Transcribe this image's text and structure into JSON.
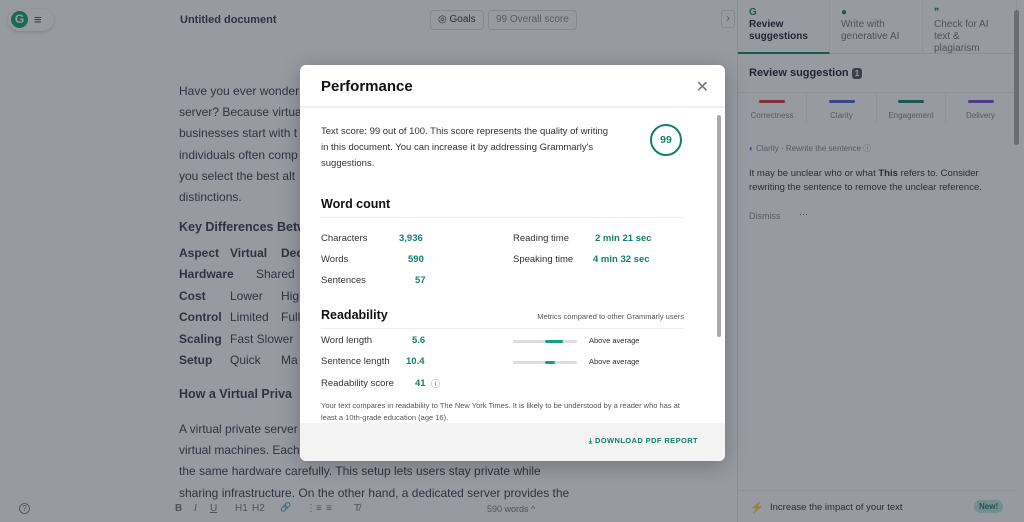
{
  "header": {
    "logo_letter": "G",
    "menu_icon": "≡",
    "title": "Untitled document",
    "goals": "Goals",
    "overall_score": "99 Overall score"
  },
  "editor": {
    "para1": [
      "Have you ever wonder",
      "server? Because virtua",
      "businesses start with t",
      "individuals often comp",
      "you select the best alt",
      "distinctions."
    ],
    "heading1": "Key Differences Betw",
    "table": [
      [
        "Aspect",
        "Virtual",
        "Dec"
      ],
      [
        "Hardware",
        "Shared",
        ""
      ],
      [
        "Cost",
        "Lower",
        "Hig"
      ],
      [
        "Control",
        "Limited",
        "Full"
      ],
      [
        "Scaling",
        "Fast Slower",
        ""
      ],
      [
        "Setup",
        "Quick",
        "Ma"
      ]
    ],
    "heading2": "How a Virtual Priva",
    "para2": [
      "A virtual private server",
      "virtual machines. Each",
      "the same hardware carefully. This setup lets users stay private while",
      "sharing infrastructure. On the other hand, a dedicated server provides the"
    ]
  },
  "toolbar": {
    "bold": "B",
    "italic": "I",
    "underline": "U",
    "h1": "H1",
    "h2": "H2",
    "link": "🔗",
    "ol": "⋮≡",
    "ul": "≡",
    "clear": "T̸",
    "word_count": "590 words ^",
    "help": "?"
  },
  "sidebar": {
    "tabs": [
      {
        "label": "Review suggestions",
        "icon": "G"
      },
      {
        "label": "Write with generative AI",
        "icon": "💡"
      },
      {
        "label": "Check for AI text & plagiarism",
        "icon": "❞"
      }
    ],
    "title": "Review suggestion",
    "count": "1",
    "categories": [
      {
        "label": "Correctness",
        "color": "#d43a3a"
      },
      {
        "label": "Clarity",
        "color": "#4a63d4"
      },
      {
        "label": "Engagement",
        "color": "#15806a"
      },
      {
        "label": "Delivery",
        "color": "#7a4ad4"
      }
    ],
    "card": {
      "meta": "Clarity · Rewrite the sentence",
      "text_pre": "It may be unclear who or what ",
      "text_bold": "This",
      "text_post": " refers to. Consider rewriting the sentence to remove the unclear reference.",
      "dismiss": "Dismiss",
      "more": "···"
    },
    "footer": {
      "text": "Increase the impact of your text",
      "badge": "New!"
    }
  },
  "modal": {
    "title": "Performance",
    "score_text": "Text score: 99 out of 100. This score represents the quality of writing in this document. You can increase it by addressing Grammarly's suggestions.",
    "score": "99",
    "word_count": {
      "title": "Word count",
      "characters_label": "Characters",
      "characters": "3,936",
      "words_label": "Words",
      "words": "590",
      "sentences_label": "Sentences",
      "sentences": "57",
      "reading_label": "Reading time",
      "reading": "2 min 21 sec",
      "speaking_label": "Speaking time",
      "speaking": "4 min 32 sec"
    },
    "readability": {
      "title": "Readability",
      "note": "Metrics compared to other Grammarly users",
      "word_length_label": "Word length",
      "word_length": "5.6",
      "word_length_rating": "Above average",
      "word_length_level": 0.78,
      "sentence_length_label": "Sentence length",
      "sentence_length": "10.4",
      "sentence_length_rating": "Above average",
      "sentence_length_level": 0.65,
      "score_label": "Readability score",
      "score": "41",
      "description": "Your text compares in readability to The New York Times. It is likely to be understood by a reader who has at least a 10th-grade education (age 16)."
    },
    "download": "DOWNLOAD PDF REPORT"
  }
}
